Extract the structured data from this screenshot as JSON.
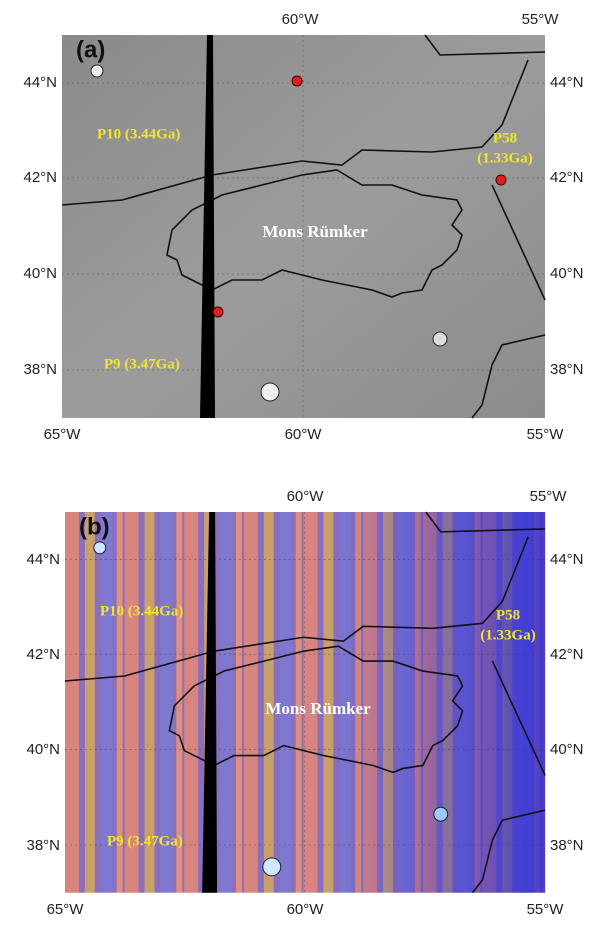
{
  "panels": [
    {
      "label": "(a)",
      "feature": "Mons Rümker",
      "sites": [
        "P10 (3.44Ga)",
        "P58",
        "(1.33Ga)",
        "P9 (3.47Ga)"
      ],
      "top_ticks": [
        "60°W",
        "55°W"
      ],
      "bottom_ticks": [
        "65°W",
        "60°W",
        "55°W"
      ],
      "left_ticks": [
        "44°N",
        "42°N",
        "40°N",
        "38°N"
      ],
      "right_ticks": [
        "44°N",
        "42°N",
        "40°N",
        "38°N"
      ]
    },
    {
      "label": "(b)",
      "feature": "Mons Rümker",
      "sites": [
        "P10 (3.44Ga)",
        "P58",
        "(1.33Ga)",
        "P9 (3.47Ga)"
      ],
      "top_ticks": [
        "60°W",
        "55°W"
      ],
      "bottom_ticks": [
        "65°W",
        "60°W",
        "55°W"
      ],
      "left_ticks": [
        "44°N",
        "42°N",
        "40°N",
        "38°N"
      ],
      "right_ticks": [
        "44°N",
        "42°N",
        "40°N",
        "38°N"
      ]
    }
  ]
}
